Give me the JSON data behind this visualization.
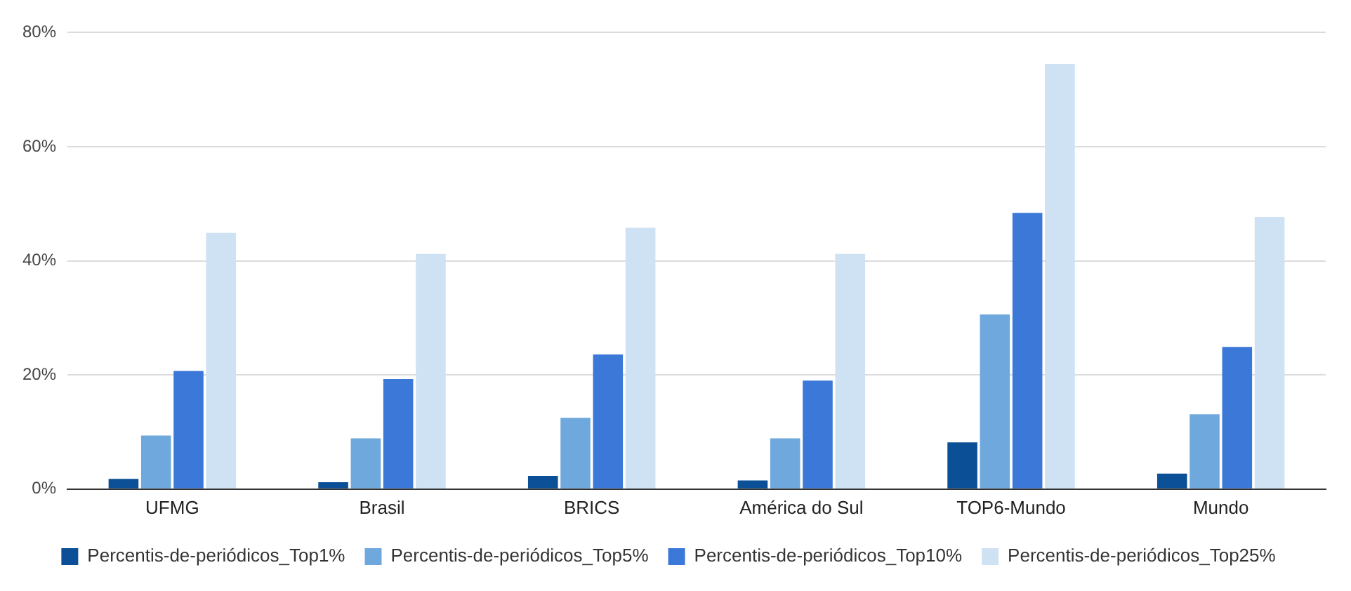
{
  "chart_data": {
    "type": "bar",
    "categories": [
      "UFMG",
      "Brasil",
      "BRICS",
      "América do Sul",
      "TOP6-Mundo",
      "Mundo"
    ],
    "series": [
      {
        "name": "Percentis-de-periódicos_Top1%",
        "color": "#0b4f96",
        "values": [
          1.8,
          1.2,
          2.3,
          1.5,
          8.2,
          2.7
        ]
      },
      {
        "name": "Percentis-de-periódicos_Top5%",
        "color": "#6fa8dc",
        "values": [
          9.4,
          8.9,
          12.5,
          8.9,
          30.6,
          13.1
        ]
      },
      {
        "name": "Percentis-de-periódicos_Top10%",
        "color": "#3c78d8",
        "values": [
          20.7,
          19.3,
          23.6,
          19.0,
          48.4,
          24.9
        ]
      },
      {
        "name": "Percentis-de-periódicos_Top25%",
        "color": "#cfe2f3",
        "values": [
          44.9,
          41.2,
          45.8,
          41.2,
          74.5,
          47.7
        ]
      }
    ],
    "ylim": [
      0,
      80
    ],
    "yticks": [
      {
        "value": 0,
        "label": "0%"
      },
      {
        "value": 20,
        "label": "20%"
      },
      {
        "value": 40,
        "label": "40%"
      },
      {
        "value": 60,
        "label": "60%"
      },
      {
        "value": 80,
        "label": "80%"
      }
    ],
    "grid": "y",
    "legend": "bottom"
  }
}
